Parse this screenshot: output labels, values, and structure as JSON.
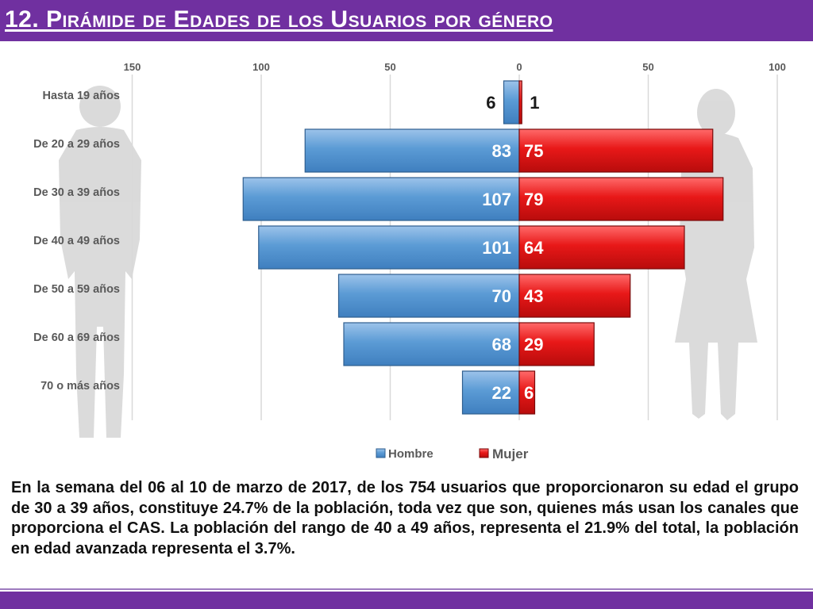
{
  "header": {
    "title": "12. Pirámide de Edades de los Usuarios por género"
  },
  "colors": {
    "hombre": "#5b9bd5",
    "mujer": "#e81818",
    "accent": "#7030a0"
  },
  "chart_data": {
    "type": "bar",
    "orientation": "horizontal-pyramid",
    "categories": [
      "Hasta 19 años",
      "De 20 a 29 años",
      "De 30 a 39 años",
      "De 40 a 49 años",
      "De 50 a 59 años",
      "De 60 a 69 años",
      "70 o más años"
    ],
    "series": [
      {
        "name": "Hombre",
        "side": "left",
        "values": [
          6,
          83,
          107,
          101,
          70,
          68,
          22
        ]
      },
      {
        "name": "Mujer",
        "side": "right",
        "values": [
          1,
          75,
          79,
          64,
          43,
          29,
          6
        ]
      }
    ],
    "x_ticks": [
      "150",
      "100",
      "50",
      "0",
      "50",
      "100"
    ],
    "x_range": [
      -150,
      100
    ],
    "grid": true,
    "legend_position": "bottom"
  },
  "paragraph": "En la semana del 06 al 10 de marzo de 2017, de los 754 usuarios  que proporcionaron su edad el grupo de 30 a 39 años, constituye 24.7% de la población, toda vez que son, quienes más usan los canales que proporciona el CAS. La población del rango de 40 a 49 años, representa el 21.9% del total, la población en edad avanzada representa el 3.7%."
}
